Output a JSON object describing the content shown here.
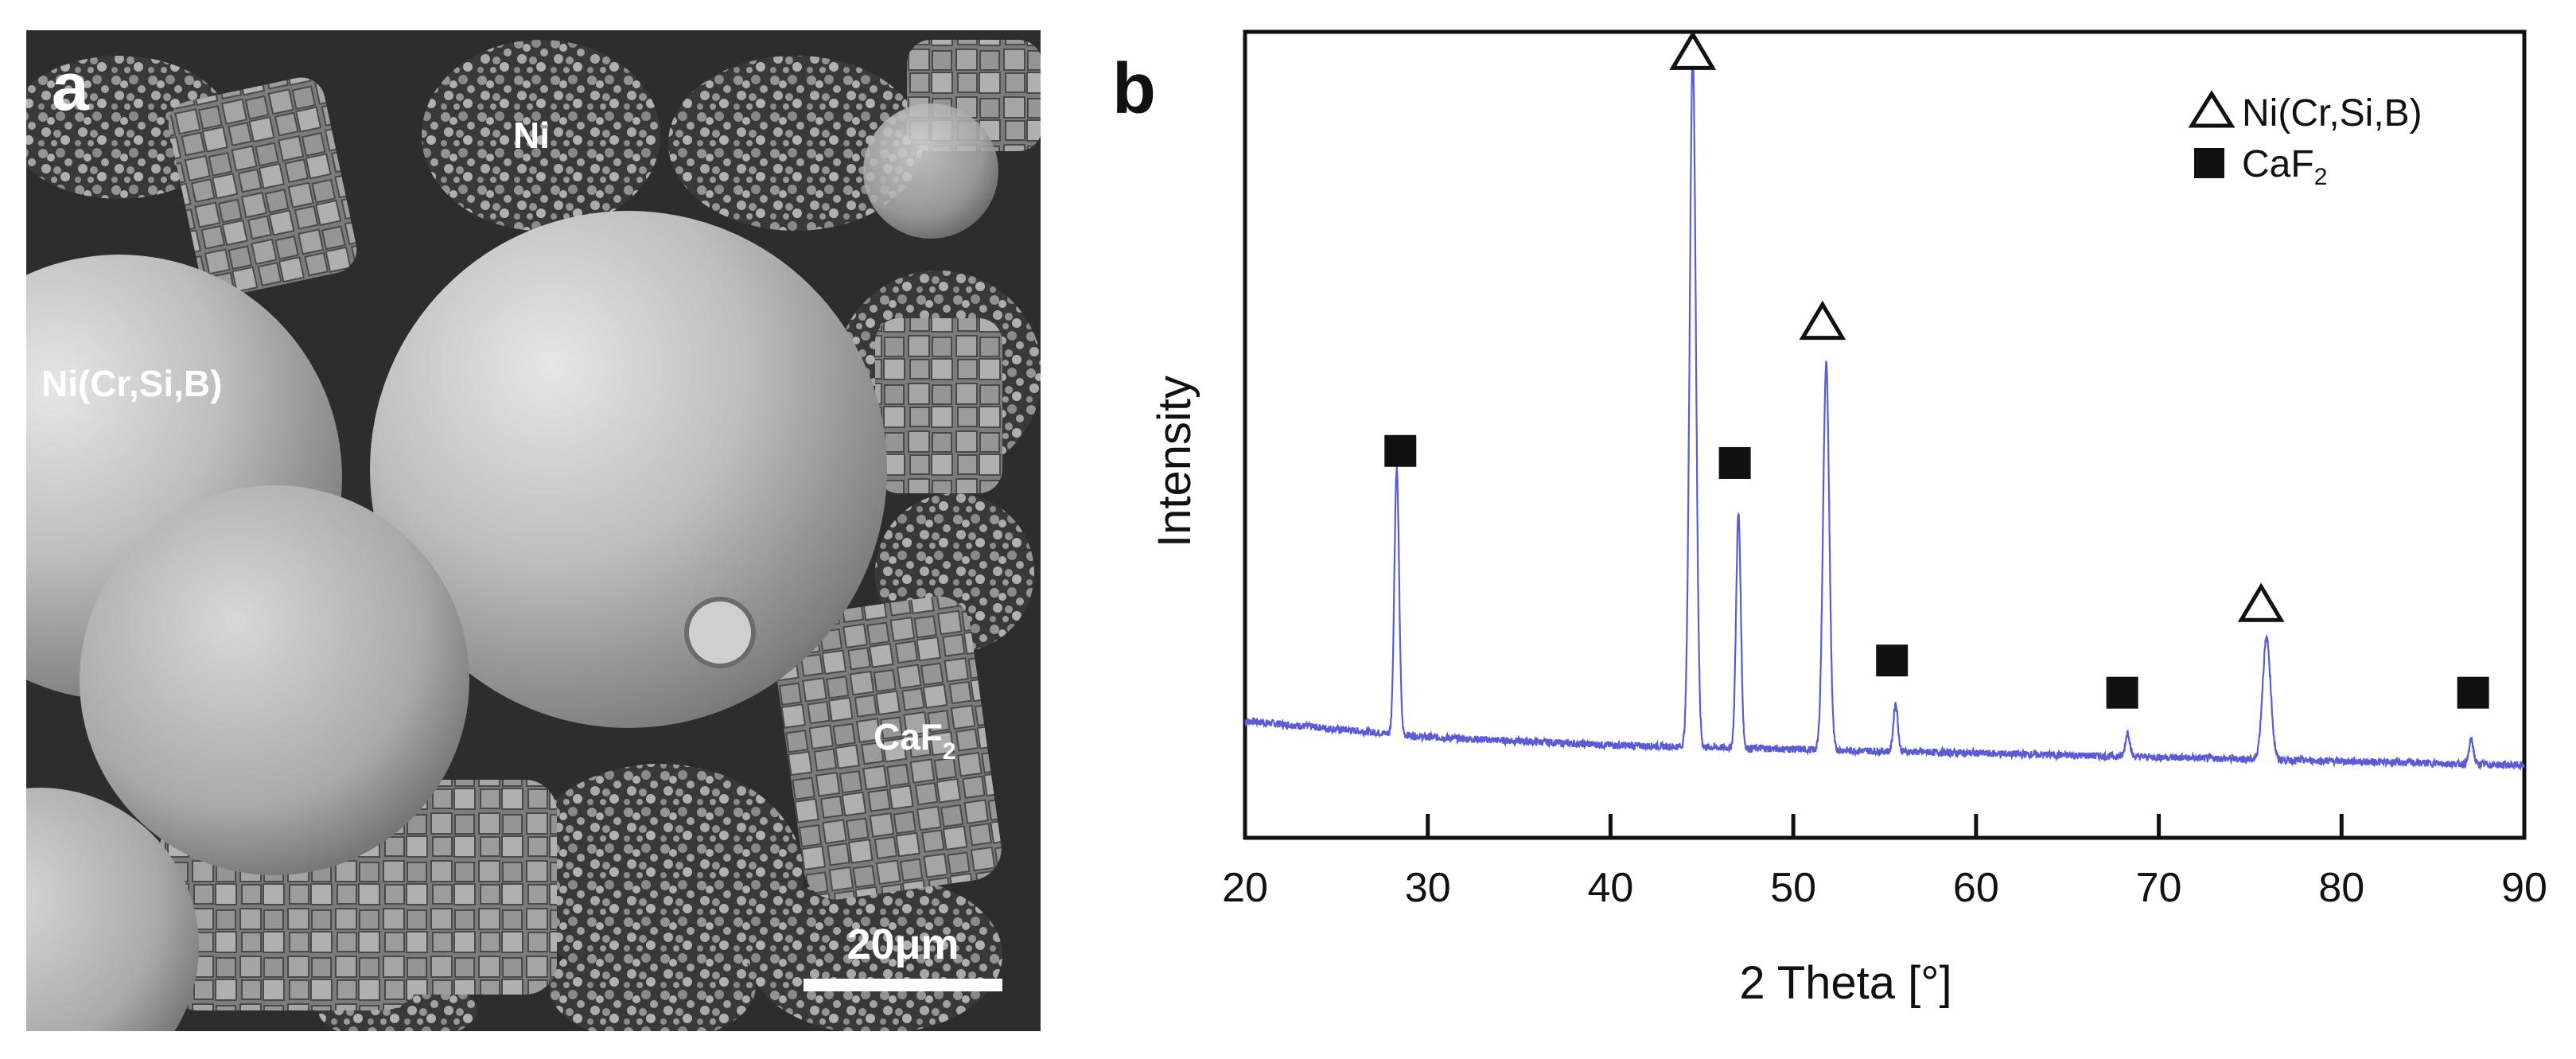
{
  "panel_a": {
    "panel_label": "a",
    "labels": {
      "ni": "Ni",
      "ni_alloy": "Ni(Cr,Si,B)",
      "caf2_base": "CaF",
      "caf2_sub": "2"
    },
    "scale_bar_text": "20μm",
    "scale_bar_value_um": 20
  },
  "chart_data": {
    "type": "line",
    "panel_label": "b",
    "xlabel": "2 Theta [°]",
    "ylabel": "Intensity",
    "xlim": [
      20,
      90
    ],
    "ylim": [
      0,
      100
    ],
    "xticks": [
      20,
      30,
      40,
      50,
      60,
      70,
      80,
      90
    ],
    "grid": false,
    "legend_position": "top-right",
    "colors": {
      "trace": "#5b5bd6",
      "axis": "#111111"
    },
    "legend": [
      {
        "marker": "open-triangle",
        "label": "Ni(Cr,Si,B)"
      },
      {
        "marker": "filled-square",
        "label_base": "CaF",
        "label_sub": "2"
      }
    ],
    "baseline": [
      [
        20,
        14.5
      ],
      [
        25,
        13.5
      ],
      [
        30,
        12.5
      ],
      [
        40,
        11.5
      ],
      [
        50,
        11
      ],
      [
        60,
        10.5
      ],
      [
        70,
        10
      ],
      [
        80,
        9.5
      ],
      [
        90,
        9
      ]
    ],
    "peaks": [
      {
        "x": 28.3,
        "height": 33,
        "width": 0.13
      },
      {
        "x": 44.5,
        "height": 86,
        "width": 0.17
      },
      {
        "x": 47.0,
        "height": 29,
        "width": 0.13
      },
      {
        "x": 51.8,
        "height": 48,
        "width": 0.17
      },
      {
        "x": 55.6,
        "height": 6,
        "width": 0.12
      },
      {
        "x": 68.3,
        "height": 3,
        "width": 0.12
      },
      {
        "x": 75.9,
        "height": 15,
        "width": 0.22
      },
      {
        "x": 87.1,
        "height": 3,
        "width": 0.12
      }
    ],
    "markers": [
      {
        "phase": "Ni(Cr,Si,B)",
        "symbol": "open-triangle",
        "x": 44.5,
        "y": 97.5
      },
      {
        "phase": "Ni(Cr,Si,B)",
        "symbol": "open-triangle",
        "x": 51.6,
        "y": 64
      },
      {
        "phase": "Ni(Cr,Si,B)",
        "symbol": "open-triangle",
        "x": 75.6,
        "y": 29
      },
      {
        "phase": "CaF2",
        "symbol": "filled-square",
        "x": 28.5,
        "y": 48
      },
      {
        "phase": "CaF2",
        "symbol": "filled-square",
        "x": 46.8,
        "y": 46.5
      },
      {
        "phase": "CaF2",
        "symbol": "filled-square",
        "x": 55.4,
        "y": 22
      },
      {
        "phase": "CaF2",
        "symbol": "filled-square",
        "x": 68.0,
        "y": 18
      },
      {
        "phase": "CaF2",
        "symbol": "filled-square",
        "x": 87.2,
        "y": 18
      }
    ]
  }
}
